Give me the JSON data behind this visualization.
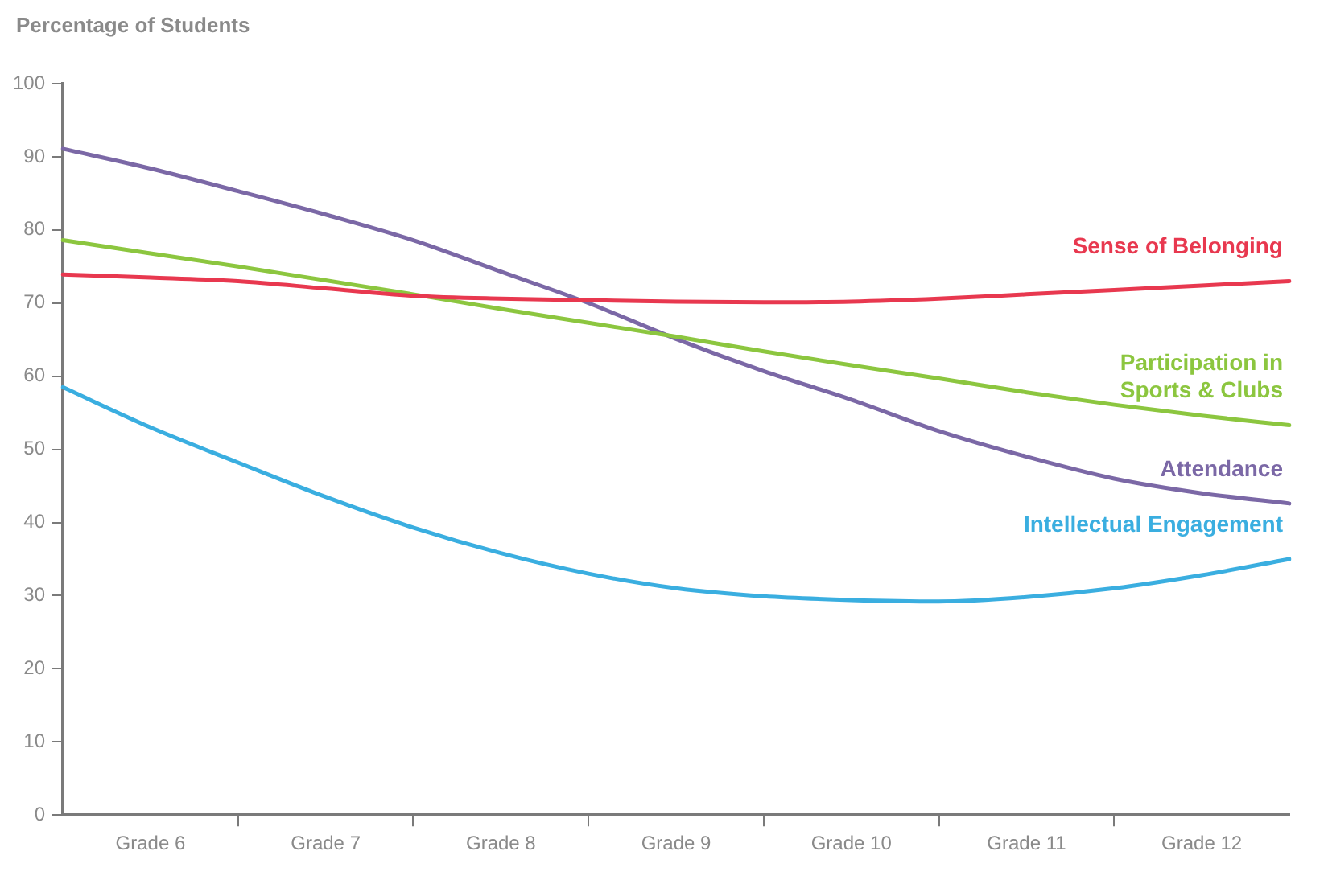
{
  "chart_data": {
    "type": "line",
    "ylabel": "Percentage of Students",
    "categories": [
      null,
      "Grade 6",
      null,
      "Grade 7",
      null,
      "Grade 8",
      null,
      "Grade 9",
      null,
      "Grade 10",
      null,
      "Grade 11",
      null,
      "Grade 12",
      null
    ],
    "ylim": [
      0,
      100
    ],
    "yticks": [
      0,
      10,
      20,
      30,
      40,
      50,
      60,
      70,
      80,
      90,
      100
    ],
    "series": [
      {
        "name": "Sense of Belonging",
        "color": "#e8384f",
        "values": [
          73.9,
          73.5,
          73.0,
          72.0,
          71.0,
          70.6,
          70.4,
          70.2,
          70.1,
          70.2,
          70.6,
          71.2,
          71.8,
          72.4,
          73.0
        ]
      },
      {
        "name": "Participation in Sports & Clubs",
        "color": "#8cc63f",
        "values": [
          78.6,
          76.8,
          75.0,
          73.1,
          71.2,
          69.2,
          67.3,
          65.4,
          63.4,
          61.5,
          59.7,
          57.8,
          56.1,
          54.6,
          53.3
        ]
      },
      {
        "name": "Attendance",
        "color": "#7b68a6",
        "values": [
          91.1,
          88.4,
          85.3,
          82.1,
          78.6,
          74.3,
          70.0,
          65.1,
          60.7,
          56.8,
          52.5,
          49.0,
          46.0,
          44.0,
          42.6
        ]
      },
      {
        "name": "Intellectual Engagement",
        "color": "#3aaee0",
        "values": [
          58.5,
          53.0,
          48.2,
          43.5,
          39.3,
          35.8,
          33.0,
          31.0,
          29.9,
          29.4,
          29.2,
          29.8,
          31.0,
          32.8,
          35.0
        ]
      }
    ],
    "grid": false,
    "legend": false,
    "marker": "none",
    "line_style": "solid"
  }
}
